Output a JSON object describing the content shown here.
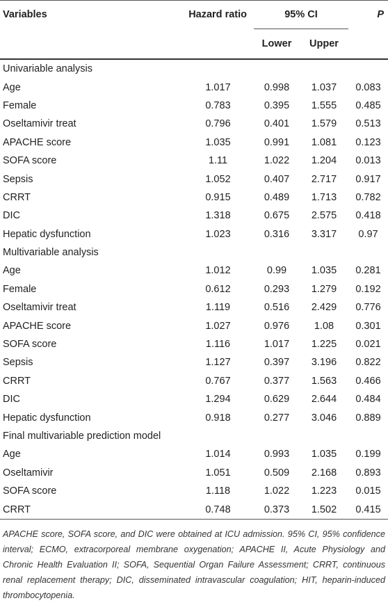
{
  "header": {
    "variables": "Variables",
    "hazard_ratio": "Hazard ratio",
    "ci": "95% CI",
    "lower": "Lower",
    "upper": "Upper",
    "p": "P"
  },
  "sections": [
    {
      "title": "Univariable analysis",
      "rows": [
        [
          "Age",
          "1.017",
          "0.998",
          "1.037",
          "0.083"
        ],
        [
          "Female",
          "0.783",
          "0.395",
          "1.555",
          "0.485"
        ],
        [
          "Oseltamivir treat",
          "0.796",
          "0.401",
          "1.579",
          "0.513"
        ],
        [
          "APACHE score",
          "1.035",
          "0.991",
          "1.081",
          "0.123"
        ],
        [
          "SOFA score",
          "1.11",
          "1.022",
          "1.204",
          "0.013"
        ],
        [
          "Sepsis",
          "1.052",
          "0.407",
          "2.717",
          "0.917"
        ],
        [
          "CRRT",
          "0.915",
          "0.489",
          "1.713",
          "0.782"
        ],
        [
          "DIC",
          "1.318",
          "0.675",
          "2.575",
          "0.418"
        ],
        [
          "Hepatic dysfunction",
          "1.023",
          "0.316",
          "3.317",
          "0.97"
        ]
      ]
    },
    {
      "title": "Multivariable analysis",
      "rows": [
        [
          "Age",
          "1.012",
          "0.99",
          "1.035",
          "0.281"
        ],
        [
          "Female",
          "0.612",
          "0.293",
          "1.279",
          "0.192"
        ],
        [
          "Oseltamivir treat",
          "1.119",
          "0.516",
          "2.429",
          "0.776"
        ],
        [
          "APACHE score",
          "1.027",
          "0.976",
          "1.08",
          "0.301"
        ],
        [
          "SOFA score",
          "1.116",
          "1.017",
          "1.225",
          "0.021"
        ],
        [
          "Sepsis",
          "1.127",
          "0.397",
          "3.196",
          "0.822"
        ],
        [
          "CRRT",
          "0.767",
          "0.377",
          "1.563",
          "0.466"
        ],
        [
          "DIC",
          "1.294",
          "0.629",
          "2.644",
          "0.484"
        ],
        [
          "Hepatic dysfunction",
          "0.918",
          "0.277",
          "3.046",
          "0.889"
        ]
      ]
    },
    {
      "title": "Final multivariable prediction model",
      "rows": [
        [
          "Age",
          "1.014",
          "0.993",
          "1.035",
          "0.199"
        ],
        [
          "Oseltamivir",
          "1.051",
          "0.509",
          "2.168",
          "0.893"
        ],
        [
          "SOFA score",
          "1.118",
          "1.022",
          "1.223",
          "0.015"
        ],
        [
          "CRRT",
          "0.748",
          "0.373",
          "1.502",
          "0.415"
        ]
      ]
    }
  ],
  "footnote": "APACHE score, SOFA score, and DIC were obtained at ICU admission. 95% CI, 95% confidence interval; ECMO, extracorporeal membrane oxygenation; APACHE II, Acute Physiology and Chronic Health Evaluation II; SOFA, Sequential Organ Failure Assessment; CRRT, continuous renal replacement therapy; DIC, disseminated intravascular coagulation; HIT, heparin-induced thrombocytopenia."
}
